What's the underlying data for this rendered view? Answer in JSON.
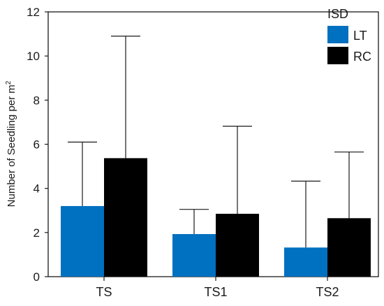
{
  "chart_data": {
    "type": "bar",
    "title": "",
    "xlabel": "",
    "ylabel": "Number of Seedling per m",
    "ylabel_superscript": "2",
    "categories": [
      "TS",
      "TS1",
      "TS2"
    ],
    "ylim": [
      0,
      12
    ],
    "yticks": [
      0,
      2,
      4,
      6,
      8,
      10,
      12
    ],
    "grid": false,
    "legend": {
      "title": "ISD",
      "position": "top-right"
    },
    "series": [
      {
        "name": "LT",
        "color": "#0070c0",
        "values": [
          3.2,
          1.93,
          1.32
        ],
        "error_upper": [
          6.1,
          3.05,
          4.33
        ]
      },
      {
        "name": "RC",
        "color": "#000000",
        "values": [
          5.37,
          2.85,
          2.65
        ],
        "error_upper": [
          10.9,
          6.82,
          5.65
        ]
      }
    ]
  }
}
